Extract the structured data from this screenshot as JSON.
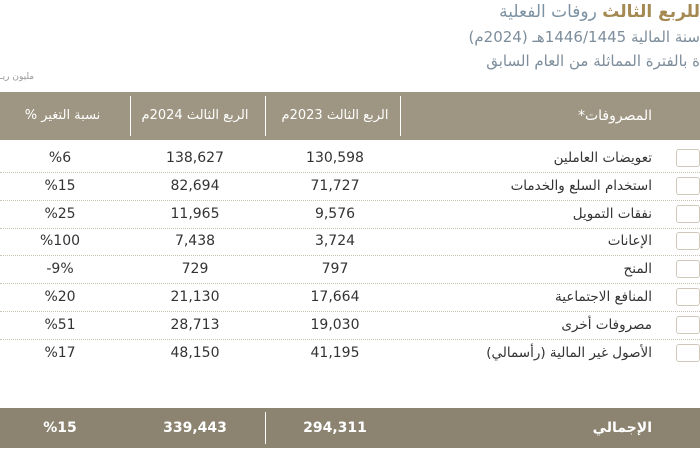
{
  "header": {
    "title_part1": "روفات الفعلية",
    "title_part2": "للربع الثالث",
    "subtitle": "سنة المالية 1446/1445هـ (2024م)",
    "note": "ة بالفترة المماثلة من العام السابق",
    "unit": "مليون ريـ"
  },
  "table": {
    "columns": [
      "المصروفات*",
      "الربع الثالث 2023م",
      "الربع الثالث 2024م",
      "نسبة التغير %"
    ],
    "rows": [
      [
        "تعويضات العاملين",
        "130,598",
        "138,627",
        "%6"
      ],
      [
        "استخدام السلع والخدمات",
        "71,727",
        "82,694",
        "%15"
      ],
      [
        "نفقات التمويل",
        "9,576",
        "11,965",
        "%25"
      ],
      [
        "الإعانات",
        "3,724",
        "7,438",
        "%100"
      ],
      [
        "المنح",
        "797",
        "729",
        "-9%"
      ],
      [
        "المنافع الاجتماعية",
        "17,664",
        "21,130",
        "%20"
      ],
      [
        "مصروفات أخرى",
        "19,030",
        "28,713",
        "%51"
      ],
      [
        "الأصول غير المالية (رأسمالي)",
        "41,195",
        "48,150",
        "%17"
      ]
    ],
    "total": [
      "الإجمالي",
      "294,311",
      "339,443",
      "%15"
    ]
  }
}
